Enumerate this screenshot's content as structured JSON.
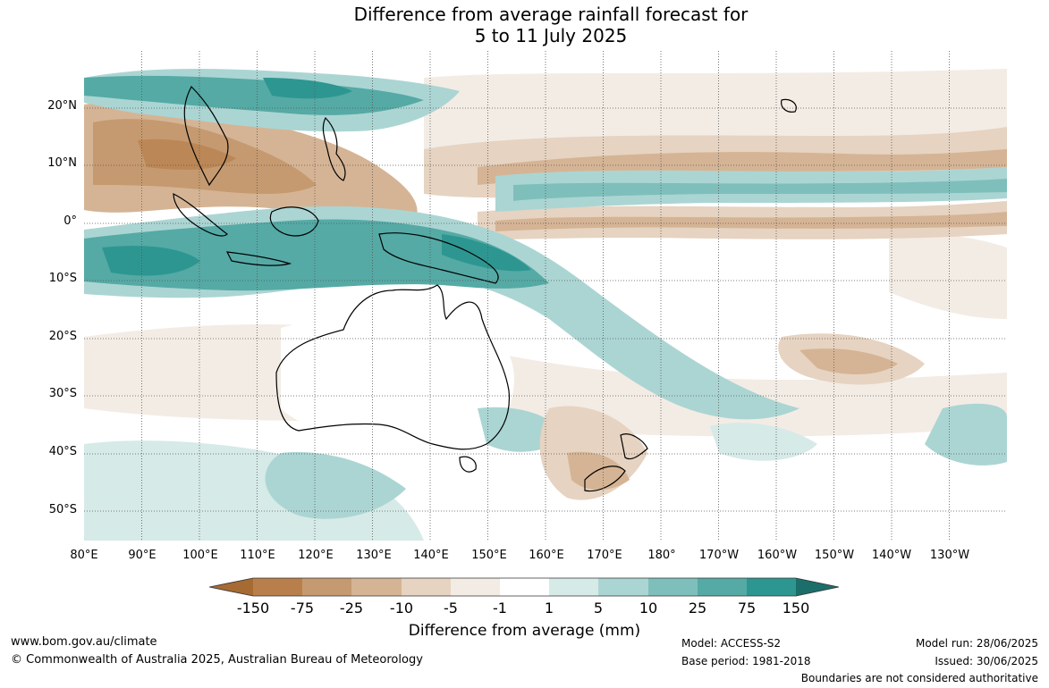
{
  "title": {
    "line1": "Difference from average rainfall forecast for",
    "line2": "5 to 11 July 2025"
  },
  "latitude_labels": [
    "20°N",
    "10°N",
    "0°",
    "10°S",
    "20°S",
    "30°S",
    "40°S",
    "50°S"
  ],
  "longitude_labels": [
    "80°E",
    "90°E",
    "100°E",
    "110°E",
    "120°E",
    "130°E",
    "140°E",
    "150°E",
    "160°E",
    "170°E",
    "180°",
    "170°W",
    "160°W",
    "150°W",
    "140°W",
    "130°W"
  ],
  "legend": {
    "title": "Difference from average (mm)",
    "ticks": [
      "-150",
      "-75",
      "-25",
      "-10",
      "-5",
      "-1",
      "1",
      "5",
      "10",
      "25",
      "75",
      "150"
    ],
    "colors": {
      "dry_extreme": "#a66a33",
      "dry_150_75": "#b87f4c",
      "dry_75_25": "#c59a70",
      "dry_25_10": "#d5b495",
      "dry_10_5": "#e6d3c1",
      "dry_5_1": "#f3ece5",
      "neutral": "#ffffff",
      "wet_1_5": "#d6eae8",
      "wet_5_10": "#abd5d3",
      "wet_10_25": "#7fbfbb",
      "wet_25_75": "#55aaa5",
      "wet_75_150": "#2e9690",
      "wet_extreme": "#1c6e6a"
    }
  },
  "footer": {
    "website": "www.bom.gov.au/climate",
    "copyright": "© Commonwealth of Australia 2025, Australian Bureau of Meteorology",
    "model": "Model: ACCESS-S2",
    "base_period": "Base period: 1981-2018",
    "model_run": "Model run: 28/06/2025",
    "issued": "Issued: 30/06/2025",
    "disclaimer": "Boundaries are not considered authoritative"
  }
}
